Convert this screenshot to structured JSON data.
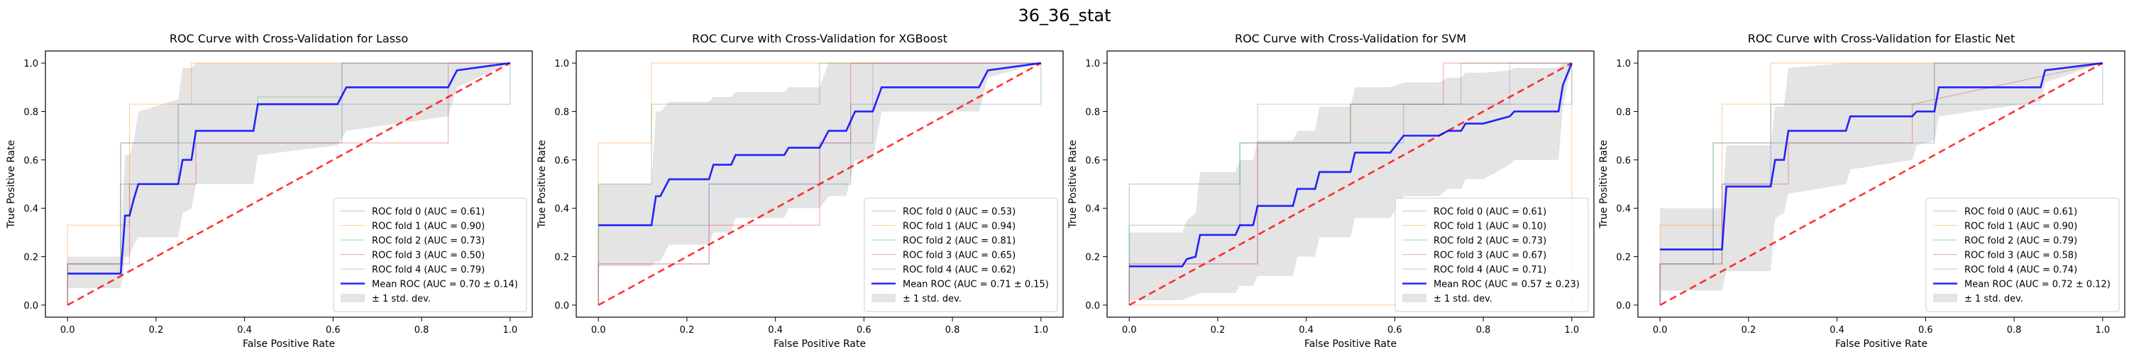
{
  "figure": {
    "suptitle": "36_36_stat"
  },
  "chart_data": [
    {
      "type": "line",
      "title": "ROC Curve with Cross-Validation for Lasso",
      "xlabel": "False Positive Rate",
      "ylabel": "True Positive Rate",
      "xlim": [
        -0.05,
        1.05
      ],
      "ylim": [
        -0.05,
        1.05
      ],
      "xticks": [
        0.0,
        0.2,
        0.4,
        0.6,
        0.8,
        1.0
      ],
      "yticks": [
        0.0,
        0.2,
        0.4,
        0.6,
        0.8,
        1.0
      ],
      "legend_position": "lower-right",
      "folds": [
        {
          "name": "ROC fold 0 (AUC = 0.61)",
          "color": "#1f77b4",
          "x": [
            0,
            0,
            0.12,
            0.12,
            0.25,
            0.25,
            0.62,
            0.62,
            1.0,
            1.0
          ],
          "y": [
            0,
            0.17,
            0.17,
            0.5,
            0.5,
            0.67,
            0.67,
            0.83,
            0.83,
            1.0
          ]
        },
        {
          "name": "ROC fold 1 (AUC = 0.90)",
          "color": "#ff7f0e",
          "x": [
            0,
            0,
            0.14,
            0.14,
            0.28,
            0.28,
            1.0
          ],
          "y": [
            0,
            0.33,
            0.33,
            0.83,
            0.83,
            1.0,
            1.0
          ]
        },
        {
          "name": "ROC fold 2 (AUC = 0.73)",
          "color": "#2ca02c",
          "x": [
            0,
            0,
            0.12,
            0.12,
            0.25,
            0.25,
            0.43,
            0.43,
            0.62,
            0.62,
            1.0
          ],
          "y": [
            0,
            0.17,
            0.17,
            0.67,
            0.67,
            0.83,
            0.83,
            0.86,
            0.86,
            1.0,
            1.0
          ]
        },
        {
          "name": "ROC fold 3 (AUC = 0.50)",
          "color": "#d62728",
          "x": [
            0,
            0,
            0.14,
            0.14,
            0.29,
            0.29,
            0.57,
            0.57,
            0.86,
            0.86,
            1.0
          ],
          "y": [
            0,
            0.17,
            0.17,
            0.5,
            0.5,
            0.67,
            0.67,
            0.67,
            0.67,
            1.0,
            1.0
          ]
        },
        {
          "name": "ROC fold 4 (AUC = 0.79)",
          "color": "#9467bd",
          "x": [
            0,
            0,
            0.12,
            0.12,
            0.25,
            0.25,
            0.62,
            0.62,
            1.0
          ],
          "y": [
            0,
            0.17,
            0.17,
            0.67,
            0.67,
            0.83,
            0.83,
            1.0,
            1.0
          ]
        }
      ],
      "mean": {
        "name": "Mean ROC (AUC = 0.70 ± 0.14)",
        "color": "#0000ff",
        "x": [
          0,
          0.12,
          0.125,
          0.13,
          0.14,
          0.15,
          0.16,
          0.25,
          0.26,
          0.28,
          0.29,
          0.42,
          0.43,
          0.61,
          0.63,
          0.86,
          0.88,
          1.0
        ],
        "y": [
          0.13,
          0.13,
          0.24,
          0.37,
          0.37,
          0.44,
          0.5,
          0.5,
          0.6,
          0.6,
          0.72,
          0.72,
          0.83,
          0.83,
          0.9,
          0.9,
          0.97,
          1.0
        ]
      },
      "std": {
        "name": "± 1 std. dev.",
        "color": "#bbbbbb",
        "upper": [
          0.2,
          0.2,
          0.45,
          0.62,
          0.62,
          0.68,
          0.8,
          0.85,
          0.98,
          0.98,
          1.0,
          1.0,
          1.0,
          1.0,
          1.0,
          1.0,
          1.0,
          1.0
        ],
        "lower": [
          0.07,
          0.07,
          0.12,
          0.2,
          0.2,
          0.25,
          0.28,
          0.28,
          0.38,
          0.4,
          0.5,
          0.5,
          0.62,
          0.66,
          0.72,
          0.78,
          0.9,
          1.0
        ]
      },
      "chance": {
        "color": "#ff0000"
      }
    },
    {
      "type": "line",
      "title": "ROC Curve with Cross-Validation for XGBoost",
      "xlabel": "False Positive Rate",
      "ylabel": "True Positive Rate",
      "xlim": [
        -0.05,
        1.05
      ],
      "ylim": [
        -0.05,
        1.05
      ],
      "xticks": [
        0.0,
        0.2,
        0.4,
        0.6,
        0.8,
        1.0
      ],
      "yticks": [
        0.0,
        0.2,
        0.4,
        0.6,
        0.8,
        1.0
      ],
      "legend_position": "lower-right",
      "folds": [
        {
          "name": "ROC fold 0 (AUC = 0.53)",
          "color": "#1f77b4",
          "x": [
            0,
            0,
            0.25,
            0.25,
            0.57,
            0.57,
            1.0,
            1.0
          ],
          "y": [
            0,
            0.33,
            0.33,
            0.5,
            0.5,
            0.83,
            0.83,
            1.0
          ]
        },
        {
          "name": "ROC fold 1 (AUC = 0.94)",
          "color": "#ff7f0e",
          "x": [
            0,
            0,
            0.12,
            0.12,
            1.0
          ],
          "y": [
            0,
            0.67,
            0.67,
            1.0,
            1.0
          ]
        },
        {
          "name": "ROC fold 2 (AUC = 0.81)",
          "color": "#2ca02c",
          "x": [
            0,
            0,
            0.12,
            0.12,
            0.5,
            0.5,
            1.0
          ],
          "y": [
            0,
            0.5,
            0.5,
            0.83,
            0.83,
            1.0,
            1.0
          ]
        },
        {
          "name": "ROC fold 3 (AUC = 0.65)",
          "color": "#d62728",
          "x": [
            0,
            0,
            0.25,
            0.25,
            0.5,
            0.5,
            0.57,
            0.57,
            1.0
          ],
          "y": [
            0,
            0.17,
            0.17,
            0.33,
            0.33,
            0.67,
            0.67,
            1.0,
            1.0
          ]
        },
        {
          "name": "ROC fold 4 (AUC = 0.62)",
          "color": "#9467bd",
          "x": [
            0,
            0,
            0.25,
            0.25,
            0.5,
            0.5,
            0.62,
            0.62,
            1.0
          ],
          "y": [
            0,
            0.17,
            0.17,
            0.5,
            0.5,
            0.67,
            0.67,
            1.0,
            1.0
          ]
        }
      ],
      "mean": {
        "name": "Mean ROC (AUC = 0.71 ± 0.15)",
        "color": "#0000ff",
        "x": [
          0,
          0.12,
          0.13,
          0.14,
          0.16,
          0.25,
          0.26,
          0.3,
          0.31,
          0.42,
          0.43,
          0.5,
          0.52,
          0.56,
          0.58,
          0.62,
          0.64,
          0.86,
          0.88,
          1.0
        ],
        "y": [
          0.33,
          0.33,
          0.45,
          0.45,
          0.52,
          0.52,
          0.58,
          0.58,
          0.62,
          0.62,
          0.65,
          0.65,
          0.72,
          0.72,
          0.8,
          0.8,
          0.9,
          0.9,
          0.97,
          1.0
        ]
      },
      "std": {
        "name": "± 1 std. dev.",
        "color": "#bbbbbb",
        "upper": [
          0.5,
          0.5,
          0.8,
          0.8,
          0.84,
          0.84,
          0.86,
          0.86,
          0.88,
          0.88,
          0.9,
          0.9,
          1.0,
          1.0,
          1.0,
          1.0,
          1.0,
          1.0,
          1.0,
          1.0
        ],
        "lower": [
          0.16,
          0.16,
          0.18,
          0.18,
          0.25,
          0.25,
          0.3,
          0.3,
          0.36,
          0.36,
          0.4,
          0.4,
          0.45,
          0.45,
          0.6,
          0.6,
          0.8,
          0.8,
          0.94,
          1.0
        ]
      },
      "chance": {
        "color": "#ff0000"
      }
    },
    {
      "type": "line",
      "title": "ROC Curve with Cross-Validation for SVM",
      "xlabel": "False Positive Rate",
      "ylabel": "True Positive Rate",
      "xlim": [
        -0.05,
        1.05
      ],
      "ylim": [
        -0.05,
        1.05
      ],
      "xticks": [
        0.0,
        0.2,
        0.4,
        0.6,
        0.8,
        1.0
      ],
      "yticks": [
        0.0,
        0.2,
        0.4,
        0.6,
        0.8,
        1.0
      ],
      "legend_position": "lower-right",
      "folds": [
        {
          "name": "ROC fold 0 (AUC = 0.61)",
          "color": "#1f77b4",
          "x": [
            0,
            0,
            0.25,
            0.25,
            0.5,
            0.5,
            0.62,
            0.62,
            1.0,
            1.0
          ],
          "y": [
            0,
            0.5,
            0.5,
            0.67,
            0.67,
            0.67,
            0.67,
            0.83,
            0.83,
            1.0
          ]
        },
        {
          "name": "ROC fold 1 (AUC = 0.10)",
          "color": "#ff7f0e",
          "x": [
            0,
            0.14,
            0.14,
            0.88,
            0.88,
            1.0,
            1.0
          ],
          "y": [
            0,
            0,
            0.0,
            0.0,
            0.0,
            0.0,
            1.0
          ]
        },
        {
          "name": "ROC fold 2 (AUC = 0.73)",
          "color": "#2ca02c",
          "x": [
            0,
            0,
            0.25,
            0.25,
            0.5,
            0.5,
            0.75,
            0.75,
            1.0
          ],
          "y": [
            0,
            0.33,
            0.33,
            0.67,
            0.67,
            0.83,
            0.83,
            1.0,
            1.0
          ]
        },
        {
          "name": "ROC fold 3 (AUC = 0.67)",
          "color": "#d62728",
          "x": [
            0,
            0,
            0.29,
            0.29,
            0.5,
            0.5,
            0.71,
            0.71,
            1.0
          ],
          "y": [
            0,
            0.17,
            0.17,
            0.67,
            0.67,
            0.83,
            0.83,
            1.0,
            1.0
          ]
        },
        {
          "name": "ROC fold 4 (AUC = 0.71)",
          "color": "#9467bd",
          "x": [
            0,
            0,
            0.29,
            0.29,
            0.5,
            0.5,
            0.86,
            0.86,
            1.0
          ],
          "y": [
            0,
            0.17,
            0.17,
            0.83,
            0.83,
            0.83,
            0.83,
            1.0,
            1.0
          ]
        }
      ],
      "mean": {
        "name": "Mean ROC (AUC = 0.57 ± 0.23)",
        "color": "#0000ff",
        "x": [
          0,
          0.12,
          0.13,
          0.15,
          0.16,
          0.24,
          0.25,
          0.28,
          0.29,
          0.37,
          0.38,
          0.42,
          0.43,
          0.5,
          0.51,
          0.59,
          0.62,
          0.7,
          0.72,
          0.75,
          0.76,
          0.8,
          0.86,
          0.87,
          0.97,
          0.98,
          1.0
        ],
        "y": [
          0.16,
          0.16,
          0.19,
          0.2,
          0.29,
          0.29,
          0.33,
          0.33,
          0.41,
          0.41,
          0.48,
          0.48,
          0.55,
          0.55,
          0.63,
          0.63,
          0.7,
          0.7,
          0.72,
          0.72,
          0.75,
          0.75,
          0.78,
          0.8,
          0.8,
          0.91,
          1.0
        ]
      },
      "std": {
        "name": "± 1 std. dev.",
        "color": "#bbbbbb",
        "upper": [
          0.3,
          0.3,
          0.35,
          0.38,
          0.55,
          0.55,
          0.6,
          0.6,
          0.68,
          0.68,
          0.72,
          0.72,
          0.82,
          0.82,
          0.9,
          0.9,
          0.92,
          0.92,
          0.94,
          0.94,
          0.96,
          0.96,
          0.97,
          0.98,
          0.98,
          1.0,
          1.0
        ],
        "lower": [
          0.02,
          0.02,
          0.03,
          0.04,
          0.05,
          0.05,
          0.08,
          0.08,
          0.12,
          0.12,
          0.2,
          0.2,
          0.28,
          0.28,
          0.36,
          0.36,
          0.45,
          0.45,
          0.48,
          0.48,
          0.52,
          0.52,
          0.58,
          0.6,
          0.6,
          0.82,
          1.0
        ]
      },
      "chance": {
        "color": "#ff0000"
      }
    },
    {
      "type": "line",
      "title": "ROC Curve with Cross-Validation for Elastic Net",
      "xlabel": "False Positive Rate",
      "ylabel": "True Positive Rate",
      "xlim": [
        -0.05,
        1.05
      ],
      "ylim": [
        -0.05,
        1.05
      ],
      "xticks": [
        0.0,
        0.2,
        0.4,
        0.6,
        0.8,
        1.0
      ],
      "yticks": [
        0.0,
        0.2,
        0.4,
        0.6,
        0.8,
        1.0
      ],
      "legend_position": "lower-right",
      "folds": [
        {
          "name": "ROC fold 0 (AUC = 0.61)",
          "color": "#1f77b4",
          "x": [
            0,
            0,
            0.14,
            0.14,
            0.25,
            0.25,
            0.62,
            0.62,
            1.0,
            1.0
          ],
          "y": [
            0,
            0.17,
            0.17,
            0.5,
            0.5,
            0.67,
            0.67,
            0.83,
            0.83,
            1.0
          ]
        },
        {
          "name": "ROC fold 1 (AUC = 0.90)",
          "color": "#ff7f0e",
          "x": [
            0,
            0,
            0.14,
            0.14,
            0.25,
            0.25,
            1.0
          ],
          "y": [
            0,
            0.33,
            0.33,
            0.83,
            0.83,
            1.0,
            1.0
          ]
        },
        {
          "name": "ROC fold 2 (AUC = 0.79)",
          "color": "#2ca02c",
          "x": [
            0,
            0,
            0.12,
            0.12,
            0.25,
            0.25,
            0.62,
            0.62,
            1.0
          ],
          "y": [
            0,
            0.17,
            0.17,
            0.67,
            0.67,
            0.83,
            0.83,
            1.0,
            1.0
          ]
        },
        {
          "name": "ROC fold 3 (AUC = 0.58)",
          "color": "#d62728",
          "x": [
            0,
            0,
            0.14,
            0.14,
            0.29,
            0.29,
            0.57,
            0.57,
            1.0
          ],
          "y": [
            0,
            0.17,
            0.17,
            0.5,
            0.5,
            0.67,
            0.67,
            0.83,
            1.0
          ]
        },
        {
          "name": "ROC fold 4 (AUC = 0.74)",
          "color": "#9467bd",
          "x": [
            0,
            0,
            0.12,
            0.12,
            0.25,
            0.25,
            0.62,
            0.62,
            1.0
          ],
          "y": [
            0,
            0.17,
            0.17,
            0.67,
            0.67,
            0.83,
            0.83,
            1.0,
            1.0
          ]
        }
      ],
      "mean": {
        "name": "Mean ROC (AUC = 0.72 ± 0.12)",
        "color": "#0000ff",
        "x": [
          0,
          0.14,
          0.15,
          0.25,
          0.26,
          0.28,
          0.29,
          0.42,
          0.43,
          0.57,
          0.58,
          0.62,
          0.63,
          0.86,
          0.87,
          1.0
        ],
        "y": [
          0.23,
          0.23,
          0.49,
          0.49,
          0.6,
          0.6,
          0.72,
          0.72,
          0.78,
          0.78,
          0.8,
          0.8,
          0.9,
          0.9,
          0.97,
          1.0
        ]
      },
      "std": {
        "name": "± 1 std. dev.",
        "color": "#bbbbbb",
        "upper": [
          0.4,
          0.4,
          0.66,
          0.66,
          0.82,
          0.82,
          0.98,
          1.0,
          1.0,
          1.0,
          1.0,
          1.0,
          1.0,
          1.0,
          1.0,
          1.0
        ],
        "lower": [
          0.06,
          0.06,
          0.14,
          0.14,
          0.36,
          0.38,
          0.46,
          0.5,
          0.56,
          0.6,
          0.66,
          0.68,
          0.78,
          0.84,
          0.92,
          1.0
        ]
      },
      "chance": {
        "color": "#ff0000"
      }
    }
  ]
}
